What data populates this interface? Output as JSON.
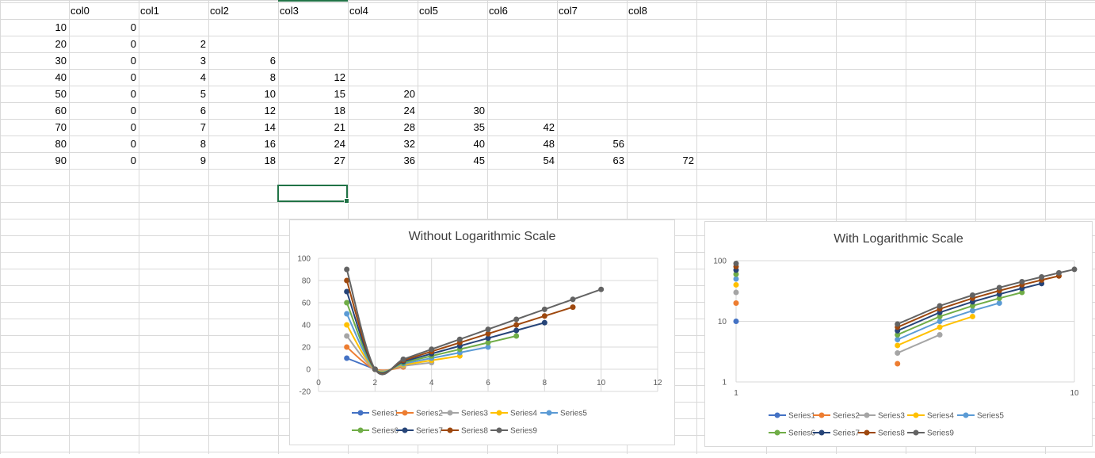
{
  "sheet": {
    "headers": [
      "col0",
      "col1",
      "col2",
      "col3",
      "col4",
      "col5",
      "col6",
      "col7",
      "col8"
    ],
    "rows": [
      [
        "10",
        "0",
        "",
        "",
        "",
        "",
        "",
        "",
        "",
        ""
      ],
      [
        "20",
        "0",
        "2",
        "",
        "",
        "",
        "",
        "",
        "",
        ""
      ],
      [
        "30",
        "0",
        "3",
        "6",
        "",
        "",
        "",
        "",
        "",
        ""
      ],
      [
        "40",
        "0",
        "4",
        "8",
        "12",
        "",
        "",
        "",
        "",
        ""
      ],
      [
        "50",
        "0",
        "5",
        "10",
        "15",
        "20",
        "",
        "",
        "",
        ""
      ],
      [
        "60",
        "0",
        "6",
        "12",
        "18",
        "24",
        "30",
        "",
        "",
        ""
      ],
      [
        "70",
        "0",
        "7",
        "14",
        "21",
        "28",
        "35",
        "42",
        "",
        ""
      ],
      [
        "80",
        "0",
        "8",
        "16",
        "24",
        "32",
        "40",
        "48",
        "56",
        ""
      ],
      [
        "90",
        "0",
        "9",
        "18",
        "27",
        "36",
        "45",
        "54",
        "63",
        "72"
      ]
    ]
  },
  "colors": {
    "Series1": "#4472C4",
    "Series2": "#ED7D31",
    "Series3": "#A5A5A5",
    "Series4": "#FFC000",
    "Series5": "#5B9BD5",
    "Series6": "#70AD47",
    "Series7": "#264478",
    "Series8": "#9E480E",
    "Series9": "#636363",
    "selection": "#217346",
    "gridline": "#d9d9d9"
  },
  "chart_data": [
    {
      "type": "line",
      "title": "Without Logarithmic Scale",
      "xlim": [
        0,
        12
      ],
      "ylim": [
        -20,
        100
      ],
      "xticks": [
        "0",
        "2",
        "4",
        "6",
        "8",
        "10",
        "12"
      ],
      "yticks": [
        "-20",
        "0",
        "20",
        "40",
        "60",
        "80",
        "100"
      ],
      "grid": true,
      "legend": "bottom",
      "x": [
        1,
        2,
        3,
        4,
        5,
        6,
        7,
        8,
        9,
        10
      ],
      "series": [
        {
          "name": "Series1",
          "values": [
            10,
            0,
            null,
            null,
            null,
            null,
            null,
            null,
            null,
            null
          ]
        },
        {
          "name": "Series2",
          "values": [
            20,
            0,
            2,
            null,
            null,
            null,
            null,
            null,
            null,
            null
          ]
        },
        {
          "name": "Series3",
          "values": [
            30,
            0,
            3,
            6,
            null,
            null,
            null,
            null,
            null,
            null
          ]
        },
        {
          "name": "Series4",
          "values": [
            40,
            0,
            4,
            8,
            12,
            null,
            null,
            null,
            null,
            null
          ]
        },
        {
          "name": "Series5",
          "values": [
            50,
            0,
            5,
            10,
            15,
            20,
            null,
            null,
            null,
            null
          ]
        },
        {
          "name": "Series6",
          "values": [
            60,
            0,
            6,
            12,
            18,
            24,
            30,
            null,
            null,
            null
          ]
        },
        {
          "name": "Series7",
          "values": [
            70,
            0,
            7,
            14,
            21,
            28,
            35,
            42,
            null,
            null
          ]
        },
        {
          "name": "Series8",
          "values": [
            80,
            0,
            8,
            16,
            24,
            32,
            40,
            48,
            56,
            null
          ]
        },
        {
          "name": "Series9",
          "values": [
            90,
            0,
            9,
            18,
            27,
            36,
            45,
            54,
            63,
            72
          ]
        }
      ]
    },
    {
      "type": "line",
      "title": "With Logarithmic Scale",
      "xscale": "log",
      "yscale": "log",
      "xlim": [
        1,
        10
      ],
      "ylim": [
        1,
        100
      ],
      "xticks": [
        "1",
        "10"
      ],
      "yticks": [
        "1",
        "10",
        "100"
      ],
      "grid": true,
      "legend": "bottom",
      "x": [
        1,
        2,
        3,
        4,
        5,
        6,
        7,
        8,
        9,
        10
      ],
      "series": [
        {
          "name": "Series1",
          "values": [
            10,
            0,
            null,
            null,
            null,
            null,
            null,
            null,
            null,
            null
          ]
        },
        {
          "name": "Series2",
          "values": [
            20,
            0,
            2,
            null,
            null,
            null,
            null,
            null,
            null,
            null
          ]
        },
        {
          "name": "Series3",
          "values": [
            30,
            0,
            3,
            6,
            null,
            null,
            null,
            null,
            null,
            null
          ]
        },
        {
          "name": "Series4",
          "values": [
            40,
            0,
            4,
            8,
            12,
            null,
            null,
            null,
            null,
            null
          ]
        },
        {
          "name": "Series5",
          "values": [
            50,
            0,
            5,
            10,
            15,
            20,
            null,
            null,
            null,
            null
          ]
        },
        {
          "name": "Series6",
          "values": [
            60,
            0,
            6,
            12,
            18,
            24,
            30,
            null,
            null,
            null
          ]
        },
        {
          "name": "Series7",
          "values": [
            70,
            0,
            7,
            14,
            21,
            28,
            35,
            42,
            null,
            null
          ]
        },
        {
          "name": "Series8",
          "values": [
            80,
            0,
            8,
            16,
            24,
            32,
            40,
            48,
            56,
            null
          ]
        },
        {
          "name": "Series9",
          "values": [
            90,
            0,
            9,
            18,
            27,
            36,
            45,
            54,
            63,
            72
          ]
        }
      ]
    }
  ]
}
